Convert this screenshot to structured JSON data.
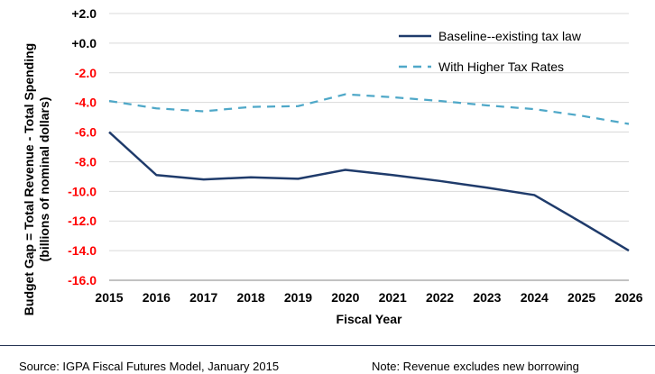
{
  "chart_data": {
    "type": "line",
    "x": [
      2015,
      2016,
      2017,
      2018,
      2019,
      2020,
      2021,
      2022,
      2023,
      2024,
      2025,
      2026
    ],
    "x_tick_labels": [
      "2015",
      "2016",
      "2017",
      "2018",
      "2019",
      "2020",
      "2021",
      "2022",
      "2023",
      "2024",
      "2025",
      "2026"
    ],
    "series": [
      {
        "name": "Baseline--existing tax law",
        "color": "#1f3b6b",
        "style": "solid",
        "values": [
          -6.0,
          -8.9,
          -9.2,
          -9.05,
          -9.15,
          -8.55,
          -8.9,
          -9.3,
          -9.75,
          -10.25,
          -12.1,
          -14.0
        ]
      },
      {
        "name": "With Higher Tax Rates",
        "color": "#4fa8c8",
        "style": "dashed",
        "values": [
          -3.9,
          -4.4,
          -4.6,
          -4.3,
          -4.25,
          -3.45,
          -3.65,
          -3.9,
          -4.2,
          -4.45,
          -4.9,
          -5.45
        ]
      }
    ],
    "ylim": [
      -16.0,
      2.0
    ],
    "y_ticks": [
      2.0,
      0.0,
      -2.0,
      -4.0,
      -6.0,
      -8.0,
      -10.0,
      -12.0,
      -14.0,
      -16.0
    ],
    "y_tick_labels": [
      "+2.0",
      "+0.0",
      "-2.0",
      "-4.0",
      "-6.0",
      "-8.0",
      "-10.0",
      "-12.0",
      "-14.0",
      "-16.0"
    ],
    "negative_tick_color": "#ff0000",
    "xlabel": "Fiscal Year",
    "ylabel_line1": "Budget Gap = Total Revenue - Total Spending",
    "ylabel_line2": "(billions of nominal dollars)",
    "grid": "horizontal",
    "legend_position": "top-right"
  },
  "footer": {
    "source": "Source: IGPA Fiscal Futures Model, January 2015",
    "note": "Note: Revenue excludes new borrowing"
  }
}
